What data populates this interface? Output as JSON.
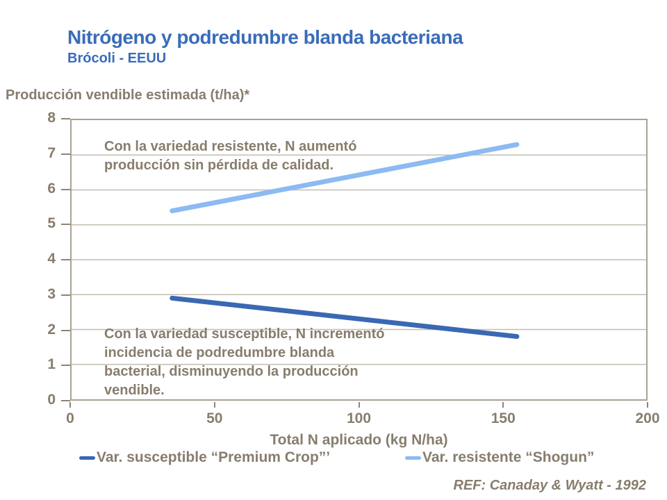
{
  "header": {
    "title": "Nitrógeno y podredumbre blanda bacteriana",
    "subtitle": "Brócoli - EEUU"
  },
  "annotations": {
    "resistant": [
      "Con la variedad resistente, N aumentó",
      "producción sin pérdida de calidad."
    ],
    "susceptible": [
      "Con la variedad susceptible, N incrementó",
      "incidencia de podredumbre blanda",
      "bacterial, disminuyendo la producción",
      "vendible."
    ]
  },
  "footer": {
    "reference": "REF: Canaday & Wyatt - 1992"
  },
  "colors": {
    "title_blue": "#3a6cb8",
    "text_taupe": "#877d6d",
    "susceptible_line": "#3a68b2",
    "resistant_line": "#8cbaf2",
    "gridline": "#c3bdb1",
    "axis_border": "#a8a295",
    "tick": "#8d8575"
  },
  "chart_data": {
    "type": "line",
    "title": "Nitrógeno y podredumbre blanda bacteriana",
    "subtitle": "Brócoli - EEUU",
    "xlabel": "Total N aplicado (kg N/ha)",
    "ylabel": "Producción vendible estimada (t/ha)*",
    "xlim": [
      0,
      200
    ],
    "ylim": [
      0,
      8
    ],
    "xticks": [
      0,
      50,
      100,
      150,
      200
    ],
    "yticks": [
      0,
      1,
      2,
      3,
      4,
      5,
      6,
      7,
      8
    ],
    "grid": "horizontal",
    "legend_position": "bottom",
    "series": [
      {
        "name": "Var. susceptible “Premium Crop”’",
        "x": [
          35,
          155
        ],
        "values": [
          2.9,
          1.8
        ],
        "color": "#3a68b2"
      },
      {
        "name": "Var. resistente “Shogun”",
        "x": [
          35,
          155
        ],
        "values": [
          5.4,
          7.3
        ],
        "color": "#8cbaf2"
      }
    ]
  }
}
